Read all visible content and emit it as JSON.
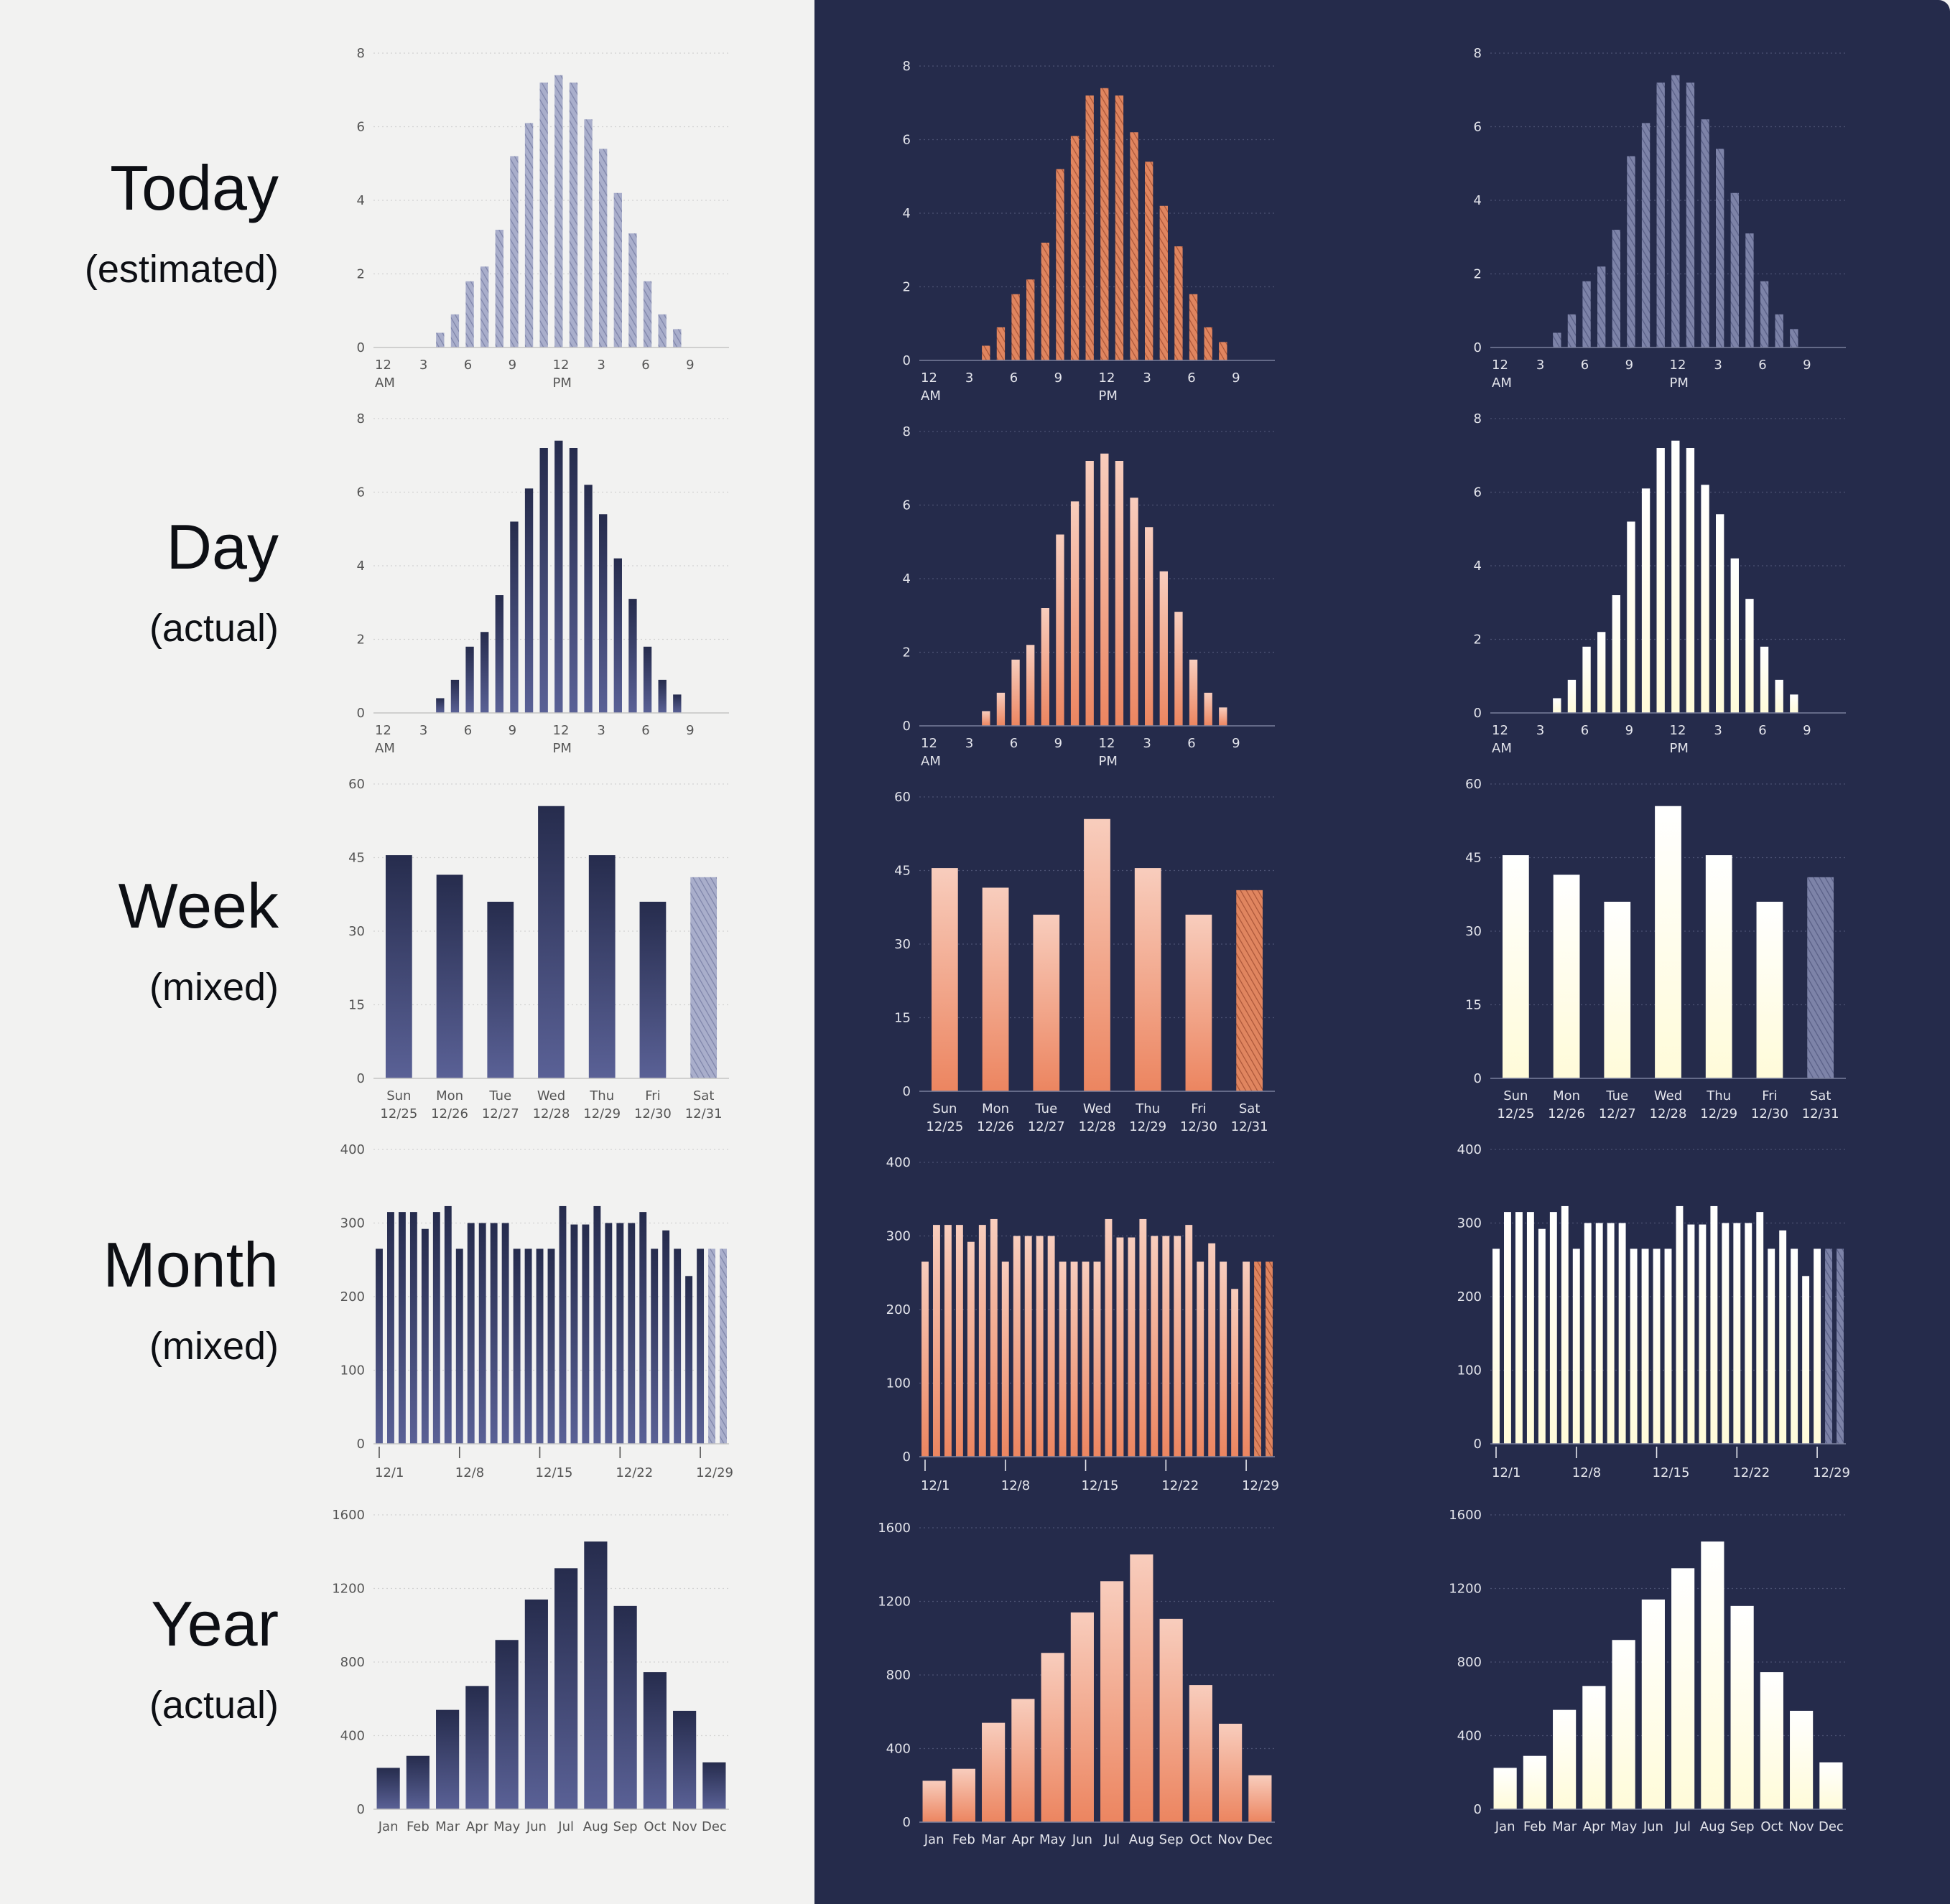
{
  "rows": [
    {
      "title": "Today",
      "subtitle": "(estimated)"
    },
    {
      "title": "Day",
      "subtitle": "(actual)"
    },
    {
      "title": "Week",
      "subtitle": "(mixed)"
    },
    {
      "title": "Month",
      "subtitle": "(mixed)"
    },
    {
      "title": "Year",
      "subtitle": "(actual)"
    }
  ],
  "themes": [
    {
      "name": "light",
      "background": "#f2f2f1",
      "axis_color": "#c4c4c4",
      "label_color": "#555555",
      "grid_color": "#d2d2d2",
      "solid_top": "#262c4d",
      "solid_bottom": "#5a6196",
      "hatch_bg": "#a9aecb",
      "hatch_line": "#7d83a8"
    },
    {
      "name": "dark-orange",
      "background": "#252b4b",
      "axis_color": "#7a7f9c",
      "label_color": "#e4e5ec",
      "grid_color": "#4c5273",
      "solid_top": "#f8cdbd",
      "solid_bottom": "#ec8560",
      "hatch_bg": "#e0855f",
      "hatch_line": "#a95538"
    },
    {
      "name": "dark-cream",
      "background": "#252b4b",
      "axis_color": "#7a7f9c",
      "label_color": "#e4e5ec",
      "grid_color": "#4c5273",
      "solid_top": "#ffffff",
      "solid_bottom": "#fffbd9",
      "hatch_bg": "#7d83a8",
      "hatch_line": "#585e85"
    }
  ],
  "chart_data": [
    {
      "id": "today",
      "type": "bar",
      "style": "hatched",
      "ylim": [
        0,
        8
      ],
      "yticks": [
        "0",
        "2",
        "4",
        "6",
        "8"
      ],
      "x_ticks": [
        {
          "index": 0,
          "label": "12",
          "sub": "AM"
        },
        {
          "index": 3,
          "label": "3"
        },
        {
          "index": 6,
          "label": "6"
        },
        {
          "index": 9,
          "label": "9"
        },
        {
          "index": 12,
          "label": "12",
          "sub": "PM"
        },
        {
          "index": 15,
          "label": "3"
        },
        {
          "index": 18,
          "label": "6"
        },
        {
          "index": 21,
          "label": "9"
        }
      ],
      "categories": [
        "0",
        "1",
        "2",
        "3",
        "4",
        "5",
        "6",
        "7",
        "8",
        "9",
        "10",
        "11",
        "12",
        "13",
        "14",
        "15",
        "16",
        "17",
        "18",
        "19",
        "20",
        "21",
        "22",
        "23"
      ],
      "values": [
        0,
        0,
        0,
        0,
        0.4,
        0.9,
        1.8,
        2.2,
        3.2,
        5.2,
        6.1,
        7.2,
        7.4,
        7.2,
        6.2,
        5.4,
        4.2,
        3.1,
        1.8,
        0.9,
        0.5,
        0,
        0,
        0
      ],
      "estimated_from": 0
    },
    {
      "id": "day",
      "type": "bar",
      "style": "solid",
      "ylim": [
        0,
        8
      ],
      "yticks": [
        "0",
        "2",
        "4",
        "6",
        "8"
      ],
      "x_ticks": [
        {
          "index": 0,
          "label": "12",
          "sub": "AM"
        },
        {
          "index": 3,
          "label": "3"
        },
        {
          "index": 6,
          "label": "6"
        },
        {
          "index": 9,
          "label": "9"
        },
        {
          "index": 12,
          "label": "12",
          "sub": "PM"
        },
        {
          "index": 15,
          "label": "3"
        },
        {
          "index": 18,
          "label": "6"
        },
        {
          "index": 21,
          "label": "9"
        }
      ],
      "categories": [
        "0",
        "1",
        "2",
        "3",
        "4",
        "5",
        "6",
        "7",
        "8",
        "9",
        "10",
        "11",
        "12",
        "13",
        "14",
        "15",
        "16",
        "17",
        "18",
        "19",
        "20",
        "21",
        "22",
        "23"
      ],
      "values": [
        0,
        0,
        0,
        0,
        0.4,
        0.9,
        1.8,
        2.2,
        3.2,
        5.2,
        6.1,
        7.2,
        7.4,
        7.2,
        6.2,
        5.4,
        4.2,
        3.1,
        1.8,
        0.9,
        0.5,
        0,
        0,
        0
      ],
      "estimated_from": 24
    },
    {
      "id": "week",
      "type": "bar",
      "style": "mixed",
      "ylim": [
        0,
        60
      ],
      "yticks": [
        "0",
        "15",
        "30",
        "45",
        "60"
      ],
      "categories": [
        "Sun",
        "Mon",
        "Tue",
        "Wed",
        "Thu",
        "Fri",
        "Sat"
      ],
      "category_dates": [
        "12/25",
        "12/26",
        "12/27",
        "12/28",
        "12/29",
        "12/30",
        "12/31"
      ],
      "values": [
        45.5,
        41.5,
        36,
        55.5,
        45.5,
        36,
        41
      ],
      "estimated_from": 6
    },
    {
      "id": "month",
      "type": "bar",
      "style": "mixed",
      "ylim": [
        0,
        400
      ],
      "yticks": [
        "0",
        "100",
        "200",
        "300",
        "400"
      ],
      "x_ticks": [
        {
          "index": 0,
          "label": "12/1"
        },
        {
          "index": 7,
          "label": "12/8"
        },
        {
          "index": 14,
          "label": "12/15"
        },
        {
          "index": 21,
          "label": "12/22"
        },
        {
          "index": 28,
          "label": "12/29"
        }
      ],
      "categories": [
        "12/1",
        "12/2",
        "12/3",
        "12/4",
        "12/5",
        "12/6",
        "12/7",
        "12/8",
        "12/9",
        "12/10",
        "12/11",
        "12/12",
        "12/13",
        "12/14",
        "12/15",
        "12/16",
        "12/17",
        "12/18",
        "12/19",
        "12/20",
        "12/21",
        "12/22",
        "12/23",
        "12/24",
        "12/25",
        "12/26",
        "12/27",
        "12/28",
        "12/29",
        "12/30",
        "12/31"
      ],
      "values": [
        265,
        315,
        315,
        315,
        292,
        315,
        323,
        265,
        300,
        300,
        300,
        300,
        265,
        265,
        265,
        265,
        323,
        298,
        298,
        323,
        300,
        300,
        300,
        315,
        265,
        290,
        265,
        228,
        265,
        265,
        265
      ],
      "estimated_from": 29
    },
    {
      "id": "year",
      "type": "bar",
      "style": "solid",
      "ylim": [
        0,
        1600
      ],
      "yticks": [
        "0",
        "400",
        "800",
        "1200",
        "1600"
      ],
      "categories": [
        "Jan",
        "Feb",
        "Mar",
        "Apr",
        "May",
        "Jun",
        "Jul",
        "Aug",
        "Sep",
        "Oct",
        "Nov",
        "Dec"
      ],
      "values": [
        225,
        290,
        540,
        670,
        920,
        1140,
        1310,
        1455,
        1105,
        745,
        535,
        255
      ],
      "estimated_from": 12
    }
  ]
}
